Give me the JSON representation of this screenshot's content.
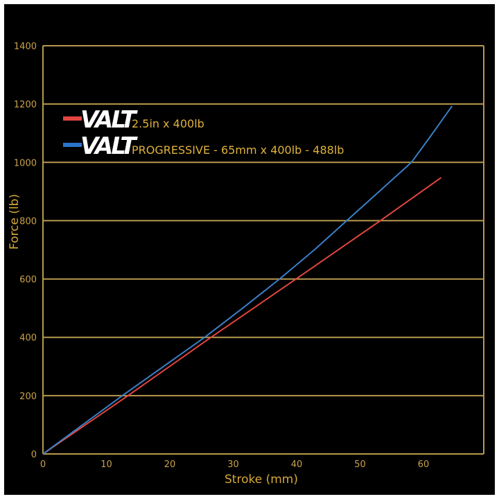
{
  "chart_data": {
    "type": "line",
    "title": "",
    "xlabel": "Stroke (mm)",
    "ylabel": "Force (lb)",
    "xlim": [
      0,
      70
    ],
    "ylim": [
      0,
      1400
    ],
    "x_ticks": [
      0,
      10,
      20,
      30,
      40,
      50,
      60
    ],
    "y_ticks": [
      0,
      200,
      400,
      600,
      800,
      1000,
      1200,
      1400
    ],
    "grid": {
      "horizontal": true,
      "vertical": false
    },
    "legend_position": "upper-left",
    "series": [
      {
        "name": "VALT 2.5in x 400lb",
        "brand": "VALT",
        "label": "2.5in x 400lb",
        "color": "#e2463f",
        "points": [
          [
            0,
            0
          ],
          [
            13.4,
            200
          ],
          [
            26.5,
            400
          ],
          [
            39.9,
            600
          ],
          [
            53.2,
            800
          ],
          [
            62.8,
            948
          ]
        ]
      },
      {
        "name": "VALT PROGRESSIVE - 65mm x 400lb - 488lb",
        "brand": "VALT",
        "label": "PROGRESSIVE - 65mm x 400lb - 488lb",
        "color": "#3a7fc8",
        "points": [
          [
            0,
            0
          ],
          [
            12.5,
            200
          ],
          [
            25.5,
            400
          ],
          [
            31.5,
            500
          ],
          [
            37.3,
            600
          ],
          [
            42.8,
            700
          ],
          [
            47.9,
            800
          ],
          [
            53.0,
            900
          ],
          [
            58.1,
            1000
          ],
          [
            60.8,
            1080
          ],
          [
            64.5,
            1193
          ]
        ]
      }
    ]
  },
  "colors": {
    "background": "#000000",
    "grid": "#b89a4e",
    "tick_text": "#c9a24a",
    "axis_title": "#d6a838"
  }
}
